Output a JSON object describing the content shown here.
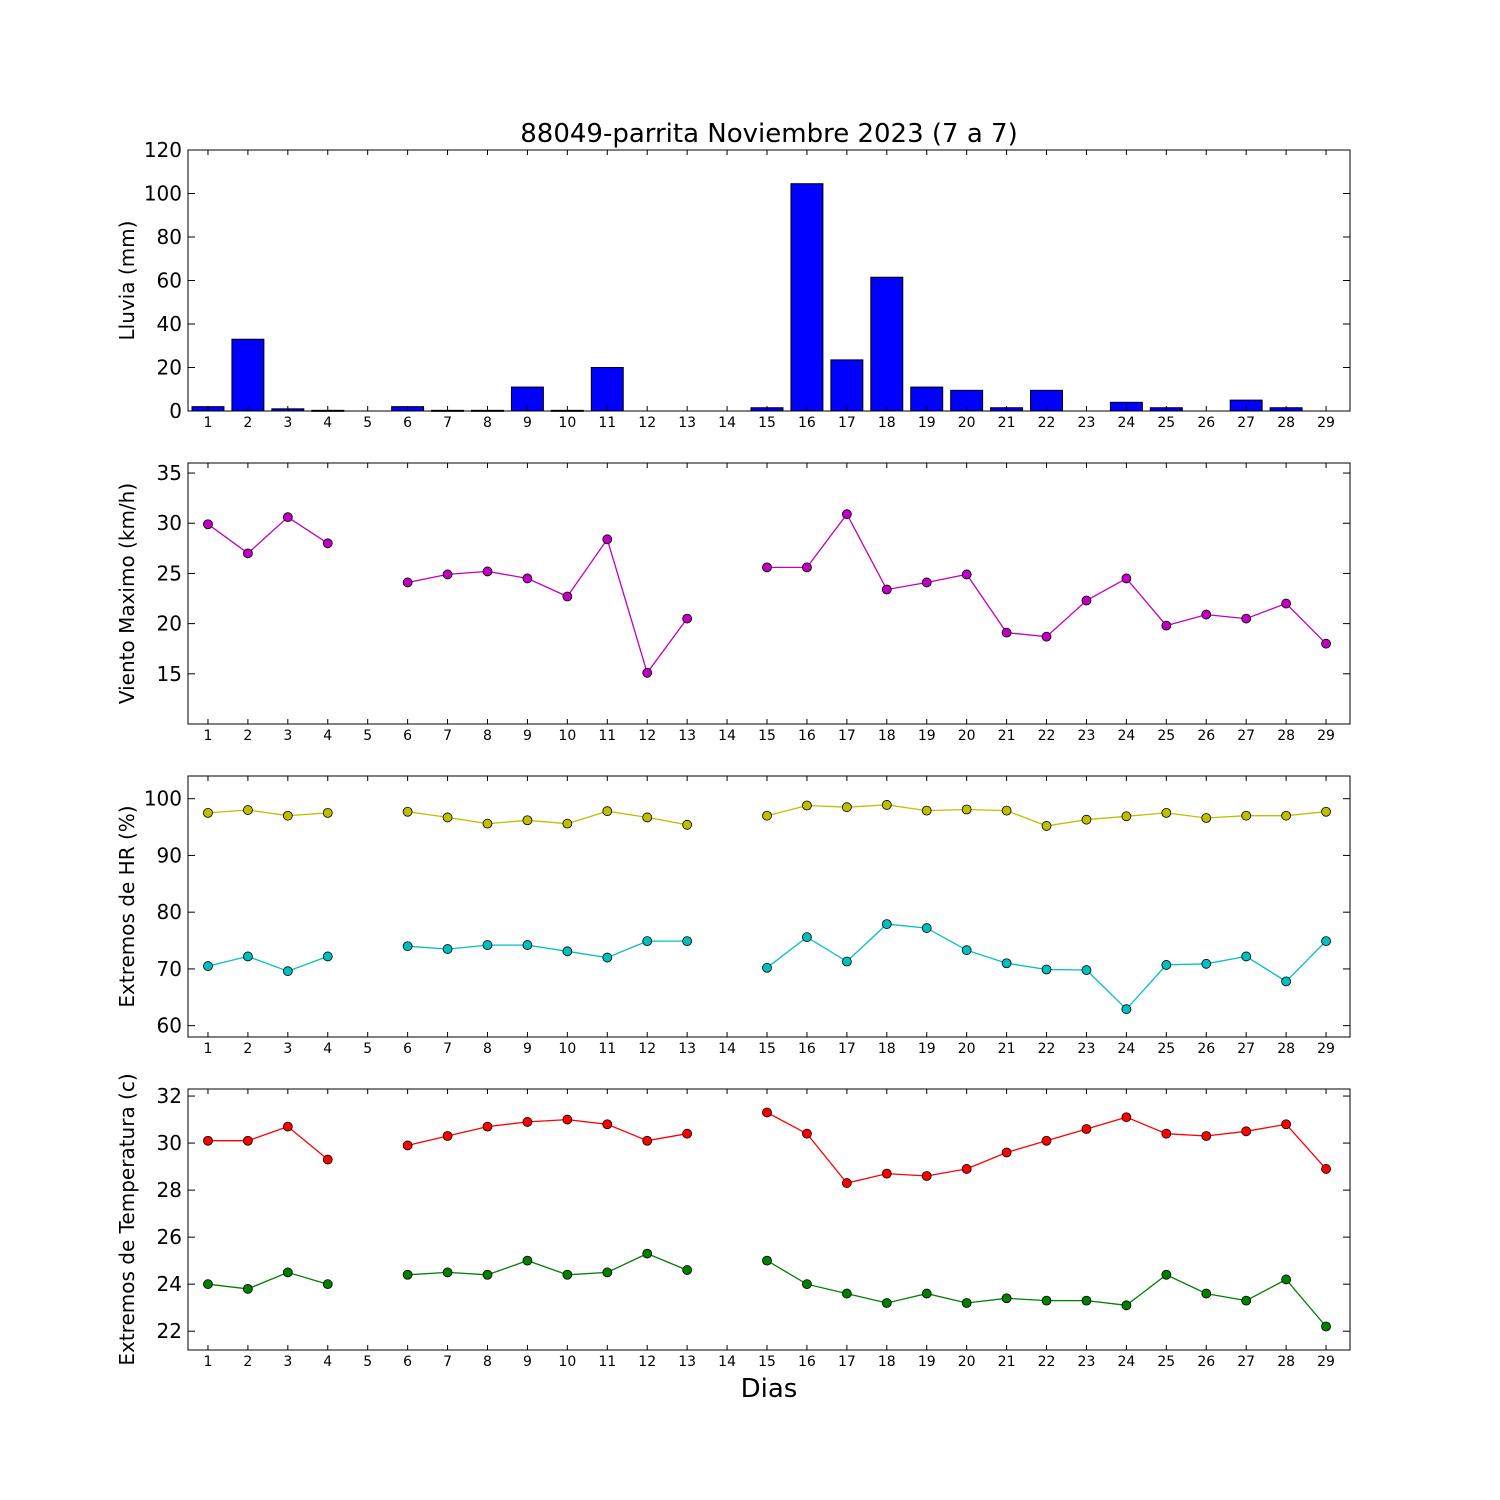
{
  "title": "88049-parrita Noviembre 2023  (7 a 7)",
  "xlabel": "Dias",
  "days": [
    1,
    2,
    3,
    4,
    5,
    6,
    7,
    8,
    9,
    10,
    11,
    12,
    13,
    14,
    15,
    16,
    17,
    18,
    19,
    20,
    21,
    22,
    23,
    24,
    25,
    26,
    27,
    28,
    29
  ],
  "chart_data": [
    {
      "type": "bar",
      "ylabel": "Lluvia (mm)",
      "ylim": [
        0,
        120
      ],
      "yticks": [
        0,
        20,
        40,
        60,
        80,
        100,
        120
      ],
      "grid": false,
      "series": [
        {
          "color": "#0000ff",
          "values": [
            2,
            33,
            1,
            0.3,
            0,
            2,
            0.3,
            0.3,
            11,
            0.3,
            20,
            0,
            0,
            0,
            1.5,
            104.5,
            23.5,
            61.5,
            11,
            9.5,
            1.5,
            9.5,
            0,
            4,
            1.5,
            0,
            5,
            1.5,
            0
          ]
        }
      ]
    },
    {
      "type": "line",
      "ylabel": "Viento Maximo (km/h)",
      "ylim": [
        10,
        36
      ],
      "yticks": [
        15,
        20,
        25,
        30,
        35
      ],
      "grid": false,
      "series": [
        {
          "color": "#bf00bf",
          "values": [
            29.9,
            27.0,
            30.6,
            28.0,
            null,
            24.1,
            24.9,
            25.2,
            24.5,
            22.7,
            28.4,
            15.1,
            20.5,
            null,
            25.6,
            25.6,
            30.9,
            23.4,
            24.1,
            24.9,
            19.1,
            18.7,
            22.3,
            24.5,
            19.8,
            20.9,
            20.5,
            22.0,
            18.0
          ]
        }
      ]
    },
    {
      "type": "line",
      "ylabel": "Extremos de HR (%)",
      "ylim": [
        58,
        104
      ],
      "yticks": [
        60,
        70,
        80,
        90,
        100
      ],
      "grid": false,
      "series": [
        {
          "color": "#bfbf00",
          "values": [
            97.5,
            98.0,
            97.0,
            97.5,
            null,
            97.7,
            96.7,
            95.6,
            96.2,
            95.6,
            97.8,
            96.7,
            95.4,
            null,
            97.0,
            98.8,
            98.5,
            98.9,
            97.9,
            98.1,
            97.9,
            95.2,
            96.3,
            96.9,
            97.5,
            96.6,
            97.0,
            97.0,
            97.7
          ]
        },
        {
          "color": "#00bfbf",
          "values": [
            70.5,
            72.2,
            69.6,
            72.2,
            null,
            74.0,
            73.5,
            74.2,
            74.2,
            73.1,
            72.0,
            74.9,
            74.9,
            null,
            70.2,
            75.6,
            71.3,
            77.9,
            77.2,
            73.3,
            71.0,
            69.9,
            69.8,
            62.9,
            70.7,
            70.9,
            72.2,
            67.8,
            74.9
          ]
        }
      ]
    },
    {
      "type": "line",
      "ylabel": "Extremos de Temperatura (c)",
      "ylim": [
        21.2,
        32.3
      ],
      "yticks": [
        22,
        24,
        26,
        28,
        30,
        32
      ],
      "grid": false,
      "series": [
        {
          "color": "#ff0000",
          "values": [
            30.1,
            30.1,
            30.7,
            29.3,
            null,
            29.9,
            30.3,
            30.7,
            30.9,
            31.0,
            30.8,
            30.1,
            30.4,
            null,
            31.3,
            30.4,
            28.3,
            28.7,
            28.6,
            28.9,
            29.6,
            30.1,
            30.6,
            31.1,
            30.4,
            30.3,
            30.5,
            30.8,
            28.9
          ]
        },
        {
          "color": "#007f00",
          "values": [
            24.0,
            23.8,
            24.5,
            24.0,
            null,
            24.4,
            24.5,
            24.4,
            25.0,
            24.4,
            24.5,
            25.3,
            24.6,
            null,
            25.0,
            24.0,
            23.6,
            23.2,
            23.6,
            23.2,
            23.4,
            23.3,
            23.3,
            23.1,
            24.4,
            23.6,
            23.3,
            24.2,
            22.2
          ]
        }
      ]
    }
  ]
}
